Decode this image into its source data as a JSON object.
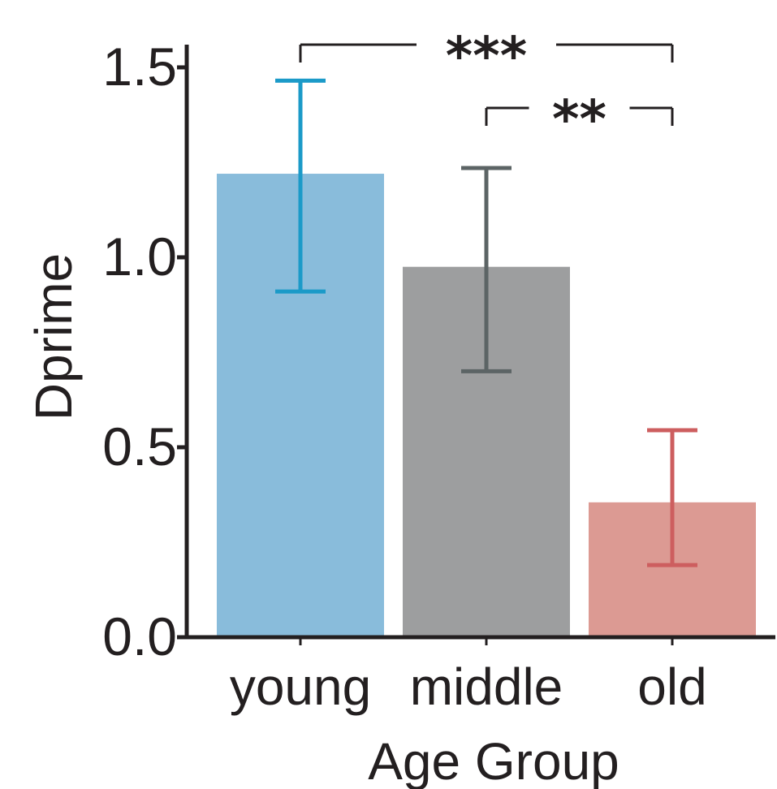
{
  "chart_data": {
    "type": "bar",
    "title": "",
    "xlabel": "Age Group",
    "ylabel": "Dprime",
    "categories": [
      "young",
      "middle",
      "old"
    ],
    "values": [
      1.22,
      0.975,
      0.355
    ],
    "error_low": [
      0.91,
      0.7,
      0.19
    ],
    "error_high": [
      1.465,
      1.235,
      0.545
    ],
    "ylim": [
      0.0,
      1.5
    ],
    "yticks": [
      0.0,
      0.5,
      1.0,
      1.5
    ],
    "ytick_labels": [
      "0.0",
      "0.5",
      "1.0",
      "1.5"
    ],
    "grid": false,
    "bar_colors": [
      "#89bcdb",
      "#9d9e9f",
      "#dc9a93"
    ],
    "error_colors": [
      "#1b9ac8",
      "#5c6465",
      "#cd5e5f"
    ],
    "significance": [
      {
        "from": "young",
        "to": "old",
        "label": "***",
        "level": 1.57
      },
      {
        "from": "middle",
        "to": "old",
        "label": "**",
        "level": 1.4
      }
    ]
  }
}
